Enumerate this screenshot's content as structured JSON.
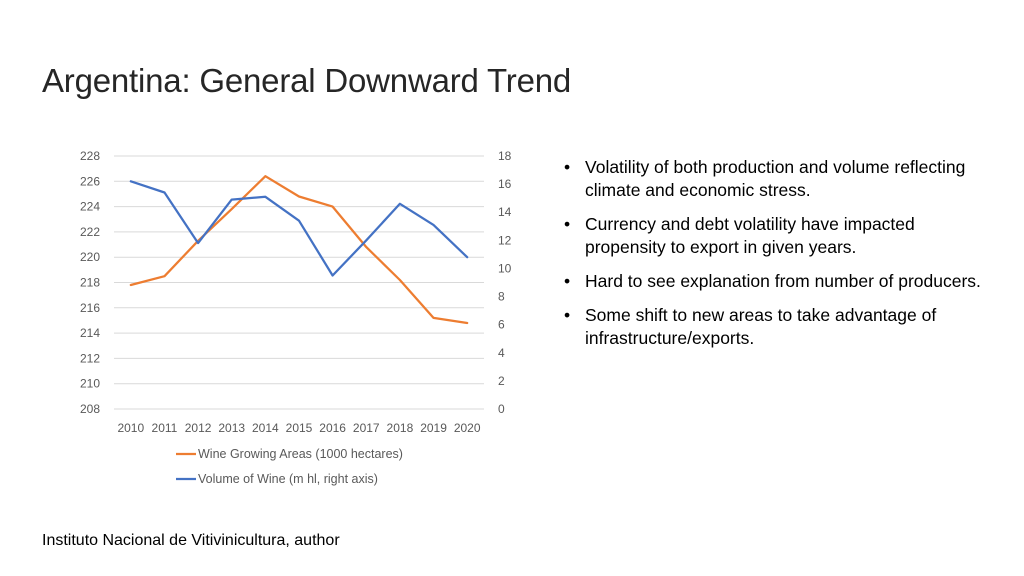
{
  "slide": {
    "title": "Argentina: General Downward Trend",
    "source": "Instituto Nacional de Vitivinicultura, author",
    "bullets": [
      "Volatility of both production and volume reflecting climate and economic stress.",
      " Currency and debt volatility have impacted propensity to export in given years.",
      "Hard to see explanation from number of producers.",
      "Some shift to new areas to take advantage of infrastructure/exports."
    ],
    "bullet_glyph": "•"
  },
  "chart_data": {
    "type": "line",
    "title": "",
    "xlabel": "",
    "ylabel": "",
    "categories": [
      "2010",
      "2011",
      "2012",
      "2013",
      "2014",
      "2015",
      "2016",
      "2017",
      "2018",
      "2019",
      "2020"
    ],
    "y_left": {
      "min": 208,
      "max": 228,
      "step": 2,
      "ticks": [
        "208",
        "210",
        "212",
        "214",
        "216",
        "218",
        "220",
        "222",
        "224",
        "226",
        "228"
      ]
    },
    "y_right": {
      "min": 0,
      "max": 18,
      "step": 2,
      "ticks": [
        "0",
        "2",
        "4",
        "6",
        "8",
        "10",
        "12",
        "14",
        "16",
        "18"
      ]
    },
    "grid": true,
    "legend_position": "bottom",
    "series": [
      {
        "name": "Wine Growing Areas (1000 hectares)",
        "axis": "left",
        "color": "#ED7D31",
        "values": [
          217.8,
          218.5,
          221.3,
          223.8,
          226.4,
          224.8,
          224.0,
          220.8,
          218.2,
          215.2,
          214.8
        ]
      },
      {
        "name": "Volume of Wine (m hl, right axis)",
        "axis": "right",
        "color": "#4472C4",
        "values": [
          16.2,
          15.4,
          11.8,
          14.9,
          15.1,
          13.4,
          9.5,
          12.0,
          14.6,
          13.1,
          10.8
        ]
      }
    ]
  }
}
